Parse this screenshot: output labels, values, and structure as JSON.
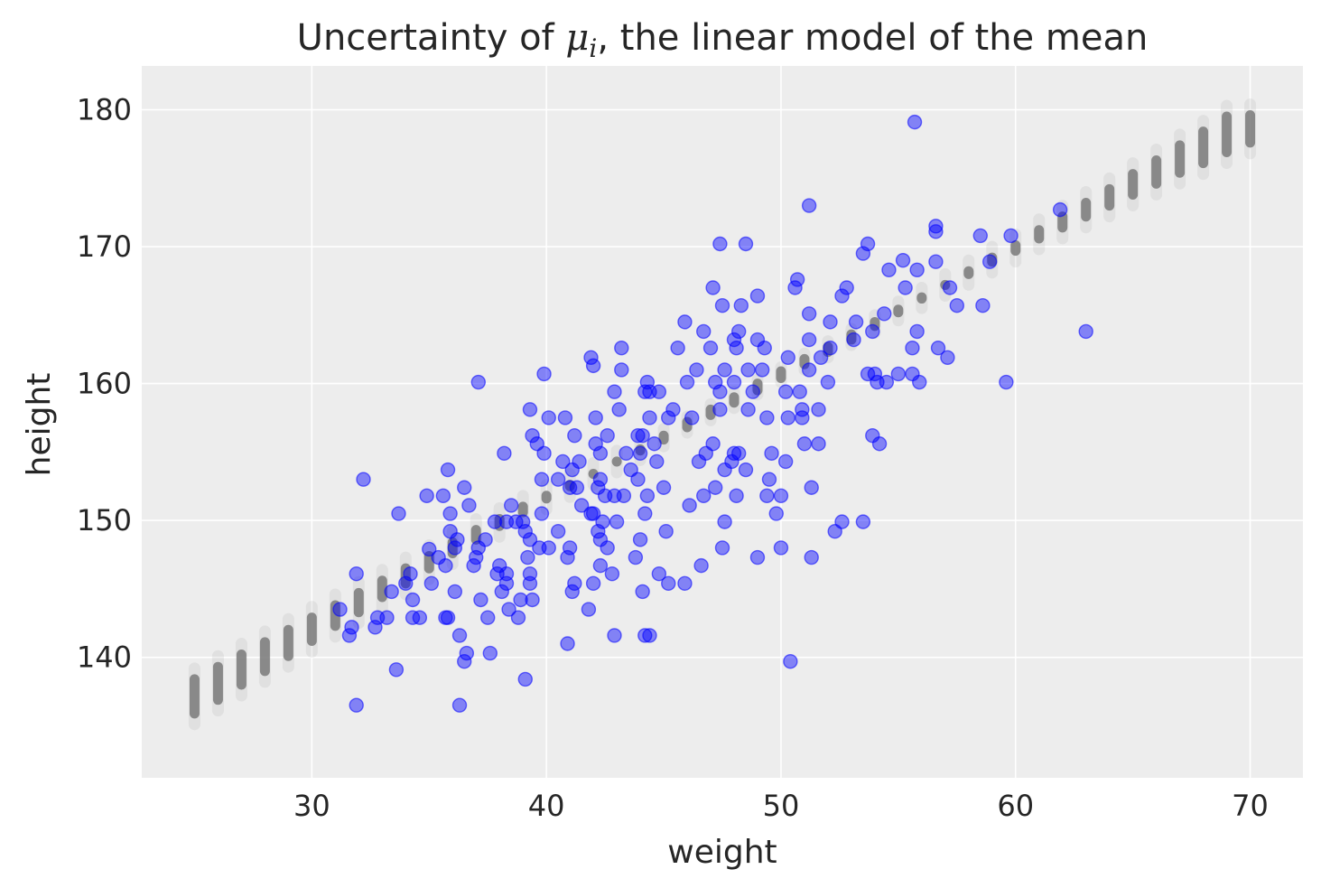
{
  "chart_data": {
    "type": "scatter",
    "title_prefix": "Uncertainty of ",
    "title_math_base": "μ",
    "title_math_sub": "i",
    "title_suffix": ", the linear model of the mean",
    "xlabel": "weight",
    "ylabel": "height",
    "xlim": [
      22.75,
      72.25
    ],
    "ylim": [
      131.2,
      183.2
    ],
    "xticks": [
      30,
      40,
      50,
      60,
      70
    ],
    "yticks": [
      140,
      150,
      160,
      170,
      180
    ],
    "grid": true,
    "colors": {
      "background": "#ededed",
      "grid": "#ffffff",
      "points": "#0000ff",
      "mu_samples": "#808080",
      "text": "#262626"
    },
    "series": [
      {
        "kind": "uncertainty-bands",
        "x": [
          25,
          26,
          27,
          28,
          29,
          30,
          31,
          32,
          33,
          34,
          35,
          36,
          37,
          38,
          39,
          40,
          41,
          42,
          43,
          44,
          45,
          46,
          47,
          48,
          49,
          50,
          51,
          52,
          53,
          54,
          55,
          56,
          57,
          58,
          59,
          60,
          61,
          62,
          63,
          64,
          65,
          66,
          67,
          68,
          69,
          70
        ],
        "y_low": [
          135.5,
          136.5,
          137.6,
          138.6,
          139.7,
          140.8,
          141.9,
          142.9,
          144.0,
          145.0,
          146.1,
          147.2,
          148.2,
          149.2,
          150.2,
          151.2,
          152.1,
          153.0,
          153.9,
          154.8,
          155.8,
          156.8,
          157.7,
          158.6,
          159.6,
          160.5,
          161.4,
          162.3,
          163.2,
          164.1,
          165.0,
          165.9,
          166.8,
          167.6,
          168.5,
          169.3,
          170.2,
          171.0,
          171.8,
          172.6,
          173.4,
          174.2,
          175.0,
          175.7,
          176.5,
          177.2
        ],
        "y_high": [
          138.8,
          139.7,
          140.6,
          141.5,
          142.4,
          143.3,
          144.2,
          145.1,
          146.0,
          146.9,
          147.8,
          148.8,
          149.7,
          150.5,
          151.4,
          152.2,
          153.0,
          153.8,
          154.7,
          155.5,
          156.3,
          157.2,
          158.1,
          159.0,
          159.9,
          160.8,
          161.8,
          162.7,
          163.6,
          164.6,
          165.6,
          166.6,
          167.6,
          168.6,
          169.6,
          170.5,
          171.6,
          172.6,
          173.6,
          174.6,
          175.7,
          176.7,
          177.8,
          178.8,
          179.9,
          180.0
        ]
      },
      {
        "kind": "observations",
        "points": [
          [
            55.7,
            179.1
          ],
          [
            51.2,
            173.0
          ],
          [
            61.9,
            172.7
          ],
          [
            56.6,
            171.5
          ],
          [
            56.6,
            171.1
          ],
          [
            58.5,
            170.8
          ],
          [
            59.8,
            170.8
          ],
          [
            47.4,
            170.2
          ],
          [
            48.5,
            170.2
          ],
          [
            53.7,
            170.2
          ],
          [
            53.5,
            169.5
          ],
          [
            55.2,
            169.0
          ],
          [
            56.6,
            168.9
          ],
          [
            58.9,
            168.9
          ],
          [
            54.6,
            168.3
          ],
          [
            55.8,
            168.3
          ],
          [
            50.7,
            167.6
          ],
          [
            47.1,
            167.0
          ],
          [
            50.6,
            167.0
          ],
          [
            52.8,
            167.0
          ],
          [
            55.3,
            167.0
          ],
          [
            57.2,
            167.0
          ],
          [
            49.0,
            166.4
          ],
          [
            52.6,
            166.4
          ],
          [
            47.5,
            165.7
          ],
          [
            48.3,
            165.7
          ],
          [
            57.5,
            165.7
          ],
          [
            58.6,
            165.7
          ],
          [
            51.2,
            165.1
          ],
          [
            54.4,
            165.1
          ],
          [
            45.9,
            164.5
          ],
          [
            52.1,
            164.5
          ],
          [
            53.2,
            164.5
          ],
          [
            46.7,
            163.8
          ],
          [
            48.2,
            163.8
          ],
          [
            53.9,
            163.8
          ],
          [
            55.8,
            163.8
          ],
          [
            63.0,
            163.8
          ],
          [
            48.0,
            163.2
          ],
          [
            49.0,
            163.2
          ],
          [
            51.2,
            163.2
          ],
          [
            53.1,
            163.2
          ],
          [
            43.2,
            162.6
          ],
          [
            45.6,
            162.6
          ],
          [
            47.0,
            162.6
          ],
          [
            48.1,
            162.6
          ],
          [
            49.3,
            162.6
          ],
          [
            52.1,
            162.6
          ],
          [
            55.6,
            162.6
          ],
          [
            56.7,
            162.6
          ],
          [
            41.9,
            161.9
          ],
          [
            50.3,
            161.9
          ],
          [
            51.7,
            161.9
          ],
          [
            57.1,
            161.9
          ],
          [
            42.0,
            161.3
          ],
          [
            43.2,
            161.0
          ],
          [
            46.4,
            161.0
          ],
          [
            47.6,
            161.0
          ],
          [
            48.6,
            161.0
          ],
          [
            49.2,
            161.0
          ],
          [
            51.2,
            161.0
          ],
          [
            53.7,
            160.7
          ],
          [
            54.0,
            160.7
          ],
          [
            55.0,
            160.7
          ],
          [
            55.6,
            160.7
          ],
          [
            39.9,
            160.7
          ],
          [
            37.1,
            160.1
          ],
          [
            44.3,
            160.1
          ],
          [
            46.0,
            160.1
          ],
          [
            47.2,
            160.1
          ],
          [
            48.0,
            160.1
          ],
          [
            52.0,
            160.1
          ],
          [
            54.1,
            160.1
          ],
          [
            54.5,
            160.1
          ],
          [
            55.9,
            160.1
          ],
          [
            59.6,
            160.1
          ],
          [
            42.9,
            159.4
          ],
          [
            44.2,
            159.4
          ],
          [
            44.4,
            159.4
          ],
          [
            44.8,
            159.4
          ],
          [
            47.4,
            159.4
          ],
          [
            48.8,
            159.4
          ],
          [
            50.2,
            159.4
          ],
          [
            50.8,
            159.4
          ],
          [
            39.3,
            158.1
          ],
          [
            43.1,
            158.1
          ],
          [
            45.4,
            158.1
          ],
          [
            47.4,
            158.1
          ],
          [
            48.6,
            158.1
          ],
          [
            50.9,
            158.1
          ],
          [
            51.6,
            158.1
          ],
          [
            40.1,
            157.5
          ],
          [
            40.8,
            157.5
          ],
          [
            42.1,
            157.5
          ],
          [
            44.4,
            157.5
          ],
          [
            45.2,
            157.5
          ],
          [
            46.2,
            157.5
          ],
          [
            49.4,
            157.5
          ],
          [
            50.3,
            157.5
          ],
          [
            50.9,
            157.5
          ],
          [
            39.4,
            156.2
          ],
          [
            41.2,
            156.2
          ],
          [
            42.6,
            156.2
          ],
          [
            43.9,
            156.2
          ],
          [
            44.1,
            156.2
          ],
          [
            53.9,
            156.2
          ],
          [
            39.6,
            155.6
          ],
          [
            42.1,
            155.6
          ],
          [
            44.6,
            155.6
          ],
          [
            47.1,
            155.6
          ],
          [
            51.0,
            155.6
          ],
          [
            51.6,
            155.6
          ],
          [
            54.2,
            155.6
          ],
          [
            38.2,
            154.9
          ],
          [
            39.9,
            154.9
          ],
          [
            42.3,
            154.9
          ],
          [
            43.4,
            154.9
          ],
          [
            44.0,
            154.9
          ],
          [
            46.8,
            154.9
          ],
          [
            48.0,
            154.9
          ],
          [
            48.2,
            154.9
          ],
          [
            49.6,
            154.9
          ],
          [
            40.7,
            154.3
          ],
          [
            41.4,
            154.3
          ],
          [
            44.7,
            154.3
          ],
          [
            46.5,
            154.3
          ],
          [
            47.9,
            154.3
          ],
          [
            50.2,
            154.3
          ],
          [
            35.8,
            153.7
          ],
          [
            41.1,
            153.7
          ],
          [
            43.6,
            153.7
          ],
          [
            47.6,
            153.7
          ],
          [
            48.5,
            153.7
          ],
          [
            39.8,
            153.0
          ],
          [
            40.5,
            153.0
          ],
          [
            42.3,
            153.0
          ],
          [
            43.9,
            153.0
          ],
          [
            49.5,
            153.0
          ],
          [
            32.2,
            153.0
          ],
          [
            36.5,
            152.4
          ],
          [
            41.0,
            152.4
          ],
          [
            41.3,
            152.4
          ],
          [
            42.2,
            152.4
          ],
          [
            45.0,
            152.4
          ],
          [
            47.2,
            152.4
          ],
          [
            51.3,
            152.4
          ],
          [
            34.9,
            151.8
          ],
          [
            35.6,
            151.8
          ],
          [
            42.5,
            151.8
          ],
          [
            42.9,
            151.8
          ],
          [
            43.3,
            151.8
          ],
          [
            44.3,
            151.8
          ],
          [
            46.7,
            151.8
          ],
          [
            48.1,
            151.8
          ],
          [
            49.4,
            151.8
          ],
          [
            50.0,
            151.8
          ],
          [
            36.7,
            151.1
          ],
          [
            38.5,
            151.1
          ],
          [
            41.5,
            151.1
          ],
          [
            46.1,
            151.1
          ],
          [
            33.7,
            150.5
          ],
          [
            35.9,
            150.5
          ],
          [
            39.8,
            150.5
          ],
          [
            41.9,
            150.5
          ],
          [
            42.0,
            150.5
          ],
          [
            44.2,
            150.5
          ],
          [
            49.8,
            150.5
          ],
          [
            37.8,
            149.9
          ],
          [
            38.3,
            149.9
          ],
          [
            38.7,
            149.9
          ],
          [
            39.0,
            149.9
          ],
          [
            42.4,
            149.9
          ],
          [
            43.0,
            149.9
          ],
          [
            47.6,
            149.9
          ],
          [
            52.6,
            149.9
          ],
          [
            53.5,
            149.9
          ],
          [
            35.9,
            149.2
          ],
          [
            39.1,
            149.2
          ],
          [
            40.5,
            149.2
          ],
          [
            42.2,
            149.2
          ],
          [
            45.1,
            149.2
          ],
          [
            52.3,
            149.2
          ],
          [
            36.2,
            148.6
          ],
          [
            37.4,
            148.6
          ],
          [
            39.3,
            148.6
          ],
          [
            42.3,
            148.6
          ],
          [
            44.0,
            148.6
          ],
          [
            36.1,
            148.0
          ],
          [
            37.1,
            148.0
          ],
          [
            39.7,
            148.0
          ],
          [
            40.1,
            148.0
          ],
          [
            41.0,
            148.0
          ],
          [
            42.6,
            148.0
          ],
          [
            47.5,
            148.0
          ],
          [
            50.0,
            148.0
          ],
          [
            35.0,
            147.9
          ],
          [
            35.4,
            147.3
          ],
          [
            37.0,
            147.3
          ],
          [
            39.2,
            147.3
          ],
          [
            40.9,
            147.3
          ],
          [
            43.8,
            147.3
          ],
          [
            49.0,
            147.3
          ],
          [
            51.3,
            147.3
          ],
          [
            35.7,
            146.7
          ],
          [
            36.9,
            146.7
          ],
          [
            38.0,
            146.7
          ],
          [
            42.3,
            146.7
          ],
          [
            46.6,
            146.7
          ],
          [
            31.9,
            146.1
          ],
          [
            34.2,
            146.1
          ],
          [
            37.9,
            146.1
          ],
          [
            38.3,
            146.1
          ],
          [
            39.3,
            146.1
          ],
          [
            42.8,
            146.1
          ],
          [
            44.8,
            146.1
          ],
          [
            34.0,
            145.4
          ],
          [
            35.1,
            145.4
          ],
          [
            38.3,
            145.4
          ],
          [
            39.3,
            145.4
          ],
          [
            41.2,
            145.4
          ],
          [
            42.0,
            145.4
          ],
          [
            45.2,
            145.4
          ],
          [
            45.9,
            145.4
          ],
          [
            33.4,
            144.8
          ],
          [
            36.1,
            144.8
          ],
          [
            38.1,
            144.8
          ],
          [
            41.1,
            144.8
          ],
          [
            44.1,
            144.8
          ],
          [
            34.3,
            144.2
          ],
          [
            37.2,
            144.2
          ],
          [
            38.9,
            144.2
          ],
          [
            39.4,
            144.2
          ],
          [
            31.2,
            143.5
          ],
          [
            38.4,
            143.5
          ],
          [
            41.8,
            143.5
          ],
          [
            32.8,
            142.9
          ],
          [
            33.2,
            142.9
          ],
          [
            34.3,
            142.9
          ],
          [
            34.6,
            142.9
          ],
          [
            35.7,
            142.9
          ],
          [
            35.8,
            142.9
          ],
          [
            37.5,
            142.9
          ],
          [
            38.8,
            142.9
          ],
          [
            31.7,
            142.2
          ],
          [
            32.7,
            142.2
          ],
          [
            31.6,
            141.6
          ],
          [
            36.3,
            141.6
          ],
          [
            42.9,
            141.6
          ],
          [
            44.2,
            141.6
          ],
          [
            44.4,
            141.6
          ],
          [
            40.9,
            141.0
          ],
          [
            36.6,
            140.3
          ],
          [
            37.6,
            140.3
          ],
          [
            36.5,
            139.7
          ],
          [
            50.4,
            139.7
          ],
          [
            33.6,
            139.1
          ],
          [
            39.1,
            138.4
          ],
          [
            31.9,
            136.5
          ],
          [
            36.3,
            136.5
          ]
        ]
      }
    ]
  }
}
